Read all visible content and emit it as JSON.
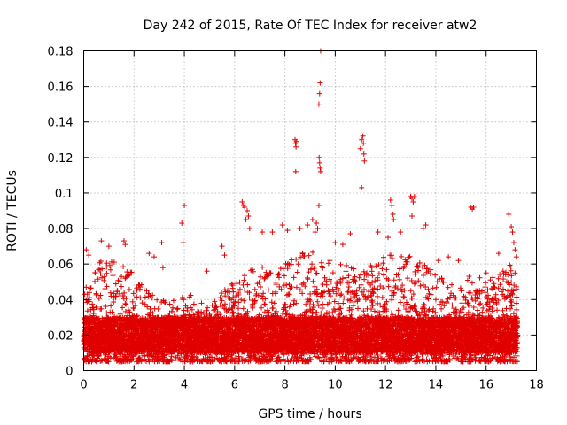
{
  "chart_data": {
    "type": "scatter",
    "title": "Day 242 of 2015, Rate Of TEC Index for receiver atw2",
    "xlabel": "GPS time / hours",
    "ylabel": "ROTI / TECUs",
    "xlim": [
      0,
      18
    ],
    "ylim": [
      0,
      0.18
    ],
    "x_ticks": [
      0,
      2,
      4,
      6,
      8,
      10,
      12,
      14,
      16,
      18
    ],
    "y_ticks": [
      0,
      0.02,
      0.04,
      0.06,
      0.08,
      0.1,
      0.12,
      0.14,
      0.16,
      0.18
    ],
    "x_tick_labels": [
      "0",
      "2",
      "4",
      "6",
      "8",
      "10",
      "12",
      "14",
      "16",
      "18"
    ],
    "y_tick_labels": [
      "0",
      "0.02",
      "0.04",
      "0.06",
      "0.08",
      "0.1",
      "0.12",
      "0.14",
      "0.16",
      "0.18"
    ],
    "grid": true,
    "marker": "+",
    "color": "#e00000",
    "bulk_envelope": {
      "x": [
        0,
        0.5,
        1,
        1.5,
        2,
        2.5,
        3,
        3.5,
        4,
        4.5,
        5,
        5.5,
        6,
        6.5,
        7,
        7.5,
        8,
        8.5,
        9,
        9.5,
        10,
        10.5,
        11,
        11.5,
        12,
        12.5,
        13,
        13.5,
        14,
        14.5,
        15,
        15.5,
        16,
        16.5,
        17,
        17.25
      ],
      "max": [
        0.045,
        0.06,
        0.065,
        0.06,
        0.055,
        0.045,
        0.04,
        0.04,
        0.045,
        0.04,
        0.035,
        0.045,
        0.05,
        0.055,
        0.06,
        0.055,
        0.06,
        0.065,
        0.07,
        0.065,
        0.06,
        0.06,
        0.055,
        0.06,
        0.065,
        0.065,
        0.065,
        0.06,
        0.055,
        0.05,
        0.05,
        0.055,
        0.05,
        0.055,
        0.06,
        0.055
      ]
    },
    "notable_points": [
      {
        "x": 0.1,
        "y": 0.068
      },
      {
        "x": 0.2,
        "y": 0.065
      },
      {
        "x": 0.7,
        "y": 0.073
      },
      {
        "x": 1.0,
        "y": 0.07
      },
      {
        "x": 1.6,
        "y": 0.073
      },
      {
        "x": 1.65,
        "y": 0.071
      },
      {
        "x": 2.6,
        "y": 0.066
      },
      {
        "x": 2.8,
        "y": 0.064
      },
      {
        "x": 3.1,
        "y": 0.072
      },
      {
        "x": 3.15,
        "y": 0.058
      },
      {
        "x": 3.9,
        "y": 0.083
      },
      {
        "x": 3.95,
        "y": 0.072
      },
      {
        "x": 4.0,
        "y": 0.093
      },
      {
        "x": 4.9,
        "y": 0.056
      },
      {
        "x": 5.5,
        "y": 0.07
      },
      {
        "x": 5.6,
        "y": 0.065
      },
      {
        "x": 6.3,
        "y": 0.095
      },
      {
        "x": 6.35,
        "y": 0.093
      },
      {
        "x": 6.4,
        "y": 0.092
      },
      {
        "x": 6.45,
        "y": 0.085
      },
      {
        "x": 6.5,
        "y": 0.09
      },
      {
        "x": 6.55,
        "y": 0.087
      },
      {
        "x": 6.6,
        "y": 0.08
      },
      {
        "x": 7.1,
        "y": 0.078
      },
      {
        "x": 7.5,
        "y": 0.078
      },
      {
        "x": 7.9,
        "y": 0.082
      },
      {
        "x": 8.1,
        "y": 0.079
      },
      {
        "x": 8.4,
        "y": 0.13
      },
      {
        "x": 8.42,
        "y": 0.128
      },
      {
        "x": 8.44,
        "y": 0.126
      },
      {
        "x": 8.46,
        "y": 0.129
      },
      {
        "x": 8.43,
        "y": 0.112
      },
      {
        "x": 8.6,
        "y": 0.08
      },
      {
        "x": 8.9,
        "y": 0.082
      },
      {
        "x": 9.1,
        "y": 0.085
      },
      {
        "x": 9.2,
        "y": 0.078
      },
      {
        "x": 9.25,
        "y": 0.083
      },
      {
        "x": 9.3,
        "y": 0.08
      },
      {
        "x": 9.35,
        "y": 0.15
      },
      {
        "x": 9.38,
        "y": 0.156
      },
      {
        "x": 9.4,
        "y": 0.162
      },
      {
        "x": 9.42,
        "y": 0.18
      },
      {
        "x": 9.36,
        "y": 0.12
      },
      {
        "x": 9.38,
        "y": 0.117
      },
      {
        "x": 9.4,
        "y": 0.114
      },
      {
        "x": 9.42,
        "y": 0.112
      },
      {
        "x": 9.35,
        "y": 0.093
      },
      {
        "x": 10.0,
        "y": 0.072
      },
      {
        "x": 10.3,
        "y": 0.071
      },
      {
        "x": 10.6,
        "y": 0.077
      },
      {
        "x": 11.0,
        "y": 0.125
      },
      {
        "x": 11.05,
        "y": 0.13
      },
      {
        "x": 11.1,
        "y": 0.132
      },
      {
        "x": 11.12,
        "y": 0.128
      },
      {
        "x": 11.14,
        "y": 0.122
      },
      {
        "x": 11.16,
        "y": 0.118
      },
      {
        "x": 11.05,
        "y": 0.103
      },
      {
        "x": 11.7,
        "y": 0.078
      },
      {
        "x": 12.1,
        "y": 0.075
      },
      {
        "x": 12.2,
        "y": 0.096
      },
      {
        "x": 12.25,
        "y": 0.093
      },
      {
        "x": 12.3,
        "y": 0.088
      },
      {
        "x": 12.32,
        "y": 0.085
      },
      {
        "x": 12.6,
        "y": 0.078
      },
      {
        "x": 13.0,
        "y": 0.098
      },
      {
        "x": 13.05,
        "y": 0.097
      },
      {
        "x": 13.1,
        "y": 0.095
      },
      {
        "x": 13.15,
        "y": 0.098
      },
      {
        "x": 13.05,
        "y": 0.087
      },
      {
        "x": 13.5,
        "y": 0.08
      },
      {
        "x": 13.6,
        "y": 0.082
      },
      {
        "x": 14.1,
        "y": 0.062
      },
      {
        "x": 14.5,
        "y": 0.064
      },
      {
        "x": 14.9,
        "y": 0.062
      },
      {
        "x": 15.4,
        "y": 0.092
      },
      {
        "x": 15.45,
        "y": 0.091
      },
      {
        "x": 15.5,
        "y": 0.092
      },
      {
        "x": 16.0,
        "y": 0.055
      },
      {
        "x": 16.5,
        "y": 0.066
      },
      {
        "x": 16.9,
        "y": 0.088
      },
      {
        "x": 17.0,
        "y": 0.081
      },
      {
        "x": 17.05,
        "y": 0.078
      },
      {
        "x": 17.1,
        "y": 0.072
      },
      {
        "x": 17.15,
        "y": 0.068
      },
      {
        "x": 17.2,
        "y": 0.064
      }
    ]
  }
}
